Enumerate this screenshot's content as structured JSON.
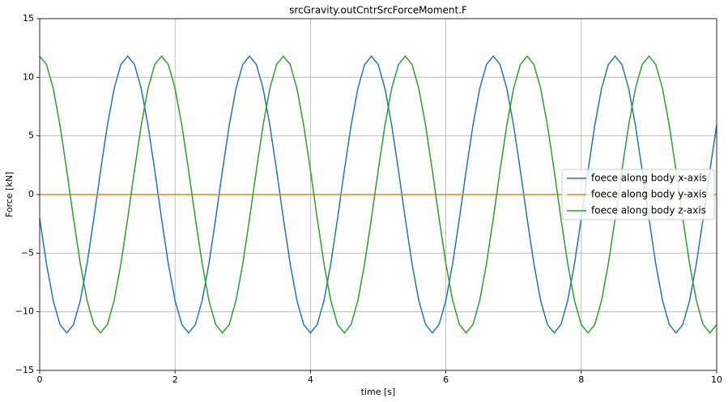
{
  "chart_data": {
    "type": "line",
    "title": "srcGravity.outCntrSrcForceMoment.F",
    "x_label": "time [s]",
    "y_label": "Force [kN]",
    "x": [
      0,
      0.1,
      0.2,
      0.3,
      0.4,
      0.5,
      0.6,
      0.7,
      0.8,
      0.9,
      1,
      1.1,
      1.2,
      1.3,
      1.4,
      1.5,
      1.6,
      1.7,
      1.8,
      1.9,
      2,
      2.1,
      2.2,
      2.3,
      2.4,
      2.5,
      2.6,
      2.7,
      2.8,
      2.9,
      3,
      3.1,
      3.2,
      3.3,
      3.4,
      3.5,
      3.6,
      3.7,
      3.8,
      3.9,
      4,
      4.1,
      4.2,
      4.3,
      4.4,
      4.5,
      4.6,
      4.7,
      4.8,
      4.9,
      5,
      5.1,
      5.2,
      5.3,
      5.4,
      5.5,
      5.6,
      5.7,
      5.8,
      5.9,
      6,
      6.1,
      6.2,
      6.3,
      6.4,
      6.5,
      6.6,
      6.7,
      6.8,
      6.9,
      7,
      7.1,
      7.2,
      7.3,
      7.4,
      7.5,
      7.6,
      7.7,
      7.8,
      7.9,
      8,
      8.1,
      8.2,
      8.3,
      8.4,
      8.5,
      8.6,
      8.7,
      8.8,
      8.9,
      9,
      9.1,
      9.2,
      9.3,
      9.4,
      9.5,
      9.6,
      9.7,
      9.8,
      9.9,
      10
    ],
    "series": [
      {
        "name": "foece along body x-axis",
        "color": "#1f77b4",
        "values": [
          -2.05,
          -5.9,
          -9.04,
          -11.09,
          -11.8,
          -11.09,
          -9.04,
          -5.9,
          -2.05,
          2.05,
          5.9,
          9.04,
          11.09,
          11.8,
          11.09,
          9.04,
          5.9,
          2.05,
          -2.05,
          -5.9,
          -9.04,
          -11.09,
          -11.8,
          -11.09,
          -9.04,
          -5.9,
          -2.05,
          2.05,
          5.9,
          9.04,
          11.09,
          11.8,
          11.09,
          9.04,
          5.9,
          2.05,
          -2.05,
          -5.9,
          -9.04,
          -11.09,
          -11.8,
          -11.09,
          -9.04,
          -5.9,
          -2.05,
          2.05,
          5.9,
          9.04,
          11.09,
          11.8,
          11.09,
          9.04,
          5.9,
          2.05,
          -2.05,
          -5.9,
          -9.04,
          -11.09,
          -11.8,
          -11.09,
          -9.04,
          -5.9,
          -2.05,
          2.05,
          5.9,
          9.04,
          11.09,
          11.8,
          11.09,
          9.04,
          5.9,
          2.05,
          -2.05,
          -5.9,
          -9.04,
          -11.09,
          -11.8,
          -11.09,
          -9.04,
          -5.9,
          -2.05,
          2.05,
          5.9,
          9.04,
          11.09,
          11.8,
          11.09,
          9.04,
          5.9,
          2.05,
          -2.05,
          -5.9,
          -9.04,
          -11.09,
          -11.8,
          -11.09,
          -9.04,
          -5.9,
          -2.05,
          2.05,
          5.9
        ]
      },
      {
        "name": "foece along body y-axis",
        "color": "#ff7f0e",
        "values": [
          0,
          0,
          0,
          0,
          0,
          0,
          0,
          0,
          0,
          0,
          0,
          0,
          0,
          0,
          0,
          0,
          0,
          0,
          0,
          0,
          0,
          0,
          0,
          0,
          0,
          0,
          0,
          0,
          0,
          0,
          0,
          0,
          0,
          0,
          0,
          0,
          0,
          0,
          0,
          0,
          0,
          0,
          0,
          0,
          0,
          0,
          0,
          0,
          0,
          0,
          0,
          0,
          0,
          0,
          0,
          0,
          0,
          0,
          0,
          0,
          0,
          0,
          0,
          0,
          0,
          0,
          0,
          0,
          0,
          0,
          0,
          0,
          0,
          0,
          0,
          0,
          0,
          0,
          0,
          0,
          0,
          0,
          0,
          0,
          0,
          0,
          0,
          0,
          0,
          0,
          0,
          0,
          0,
          0,
          0,
          0,
          0,
          0,
          0,
          0,
          0
        ]
      },
      {
        "name": "foece along body z-axis",
        "color": "#2ca02c",
        "values": [
          11.8,
          11.09,
          9.04,
          5.9,
          2.05,
          -2.05,
          -5.9,
          -9.04,
          -11.09,
          -11.8,
          -11.09,
          -9.04,
          -5.9,
          -2.05,
          2.05,
          5.9,
          9.04,
          11.09,
          11.8,
          11.09,
          9.04,
          5.9,
          2.05,
          -2.05,
          -5.9,
          -9.04,
          -11.09,
          -11.8,
          -11.09,
          -9.04,
          -5.9,
          -2.05,
          2.05,
          5.9,
          9.04,
          11.09,
          11.8,
          11.09,
          9.04,
          5.9,
          2.05,
          -2.05,
          -5.9,
          -9.04,
          -11.09,
          -11.8,
          -11.09,
          -9.04,
          -5.9,
          -2.05,
          2.05,
          5.9,
          9.04,
          11.09,
          11.8,
          11.09,
          9.04,
          5.9,
          2.05,
          -2.05,
          -5.9,
          -9.04,
          -11.09,
          -11.8,
          -11.09,
          -9.04,
          -5.9,
          -2.05,
          2.05,
          5.9,
          9.04,
          11.09,
          11.8,
          11.09,
          9.04,
          5.9,
          2.05,
          -2.05,
          -5.9,
          -9.04,
          -11.09,
          -11.8,
          -11.09,
          -9.04,
          -5.9,
          -2.05,
          2.05,
          5.9,
          9.04,
          11.09,
          11.8,
          11.09,
          9.04,
          5.9,
          2.05,
          -2.05,
          -5.9,
          -9.04,
          -11.09,
          -11.8,
          -11.09
        ]
      }
    ],
    "xlim": [
      0,
      10
    ],
    "xticks": [
      0,
      2,
      4,
      6,
      8,
      10
    ],
    "ylim": [
      -15,
      15
    ],
    "yticks": [
      {
        "value": -15,
        "label": "−15"
      },
      {
        "value": -10,
        "label": "−10"
      },
      {
        "value": -5,
        "label": "−5"
      },
      0,
      5,
      10,
      15
    ],
    "grid": true,
    "legend": "center right"
  }
}
